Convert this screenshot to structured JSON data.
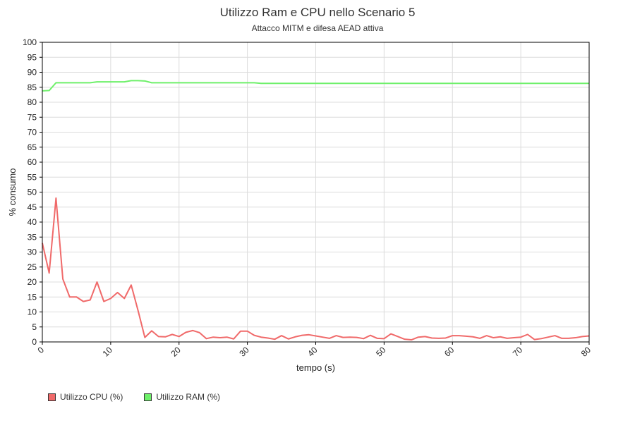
{
  "chart_data": {
    "type": "line",
    "title": "Utilizzo Ram e CPU nello Scenario 5",
    "subtitle": "Attacco MITM e difesa AEAD attiva",
    "xlabel": "tempo (s)",
    "ylabel": "% consumo",
    "xlim": [
      0,
      80
    ],
    "ylim": [
      0,
      100
    ],
    "x_ticks": [
      0,
      10,
      20,
      30,
      40,
      50,
      60,
      70,
      80
    ],
    "y_ticks": [
      0,
      5,
      10,
      15,
      20,
      25,
      30,
      35,
      40,
      45,
      50,
      55,
      60,
      65,
      70,
      75,
      80,
      85,
      90,
      95,
      100
    ],
    "grid": true,
    "legend_position": "bottom-left",
    "x": [
      0,
      1,
      2,
      3,
      4,
      5,
      6,
      7,
      8,
      9,
      10,
      11,
      12,
      13,
      14,
      15,
      16,
      17,
      18,
      19,
      20,
      21,
      22,
      23,
      24,
      25,
      26,
      27,
      28,
      29,
      30,
      31,
      32,
      33,
      34,
      35,
      36,
      37,
      38,
      39,
      40,
      41,
      42,
      43,
      44,
      45,
      46,
      47,
      48,
      49,
      50,
      51,
      52,
      53,
      54,
      55,
      56,
      57,
      58,
      59,
      60,
      61,
      62,
      63,
      64,
      65,
      66,
      67,
      68,
      69,
      70,
      71,
      72,
      73,
      74,
      75,
      76,
      77,
      78,
      79,
      80
    ],
    "series": [
      {
        "name": "Utilizzo CPU (%)",
        "color": "#f06a6a",
        "values": [
          33,
          23,
          48,
          21,
          15,
          15,
          13.5,
          14,
          20,
          13.5,
          14.5,
          16.5,
          14.5,
          19,
          10.5,
          1.5,
          3.7,
          1.8,
          1.7,
          2.5,
          1.8,
          3.2,
          3.8,
          3.1,
          1.1,
          1.6,
          1.4,
          1.6,
          1,
          3.6,
          3.6,
          2.2,
          1.6,
          1.3,
          0.9,
          2.1,
          1,
          1.7,
          2.2,
          2.4,
          2,
          1.6,
          1.2,
          2.1,
          1.5,
          1.6,
          1.5,
          1.1,
          2.2,
          1.2,
          1.1,
          2.7,
          1.8,
          0.9,
          0.7,
          1.6,
          1.8,
          1.3,
          1.2,
          1.3,
          2.1,
          2.1,
          1.9,
          1.7,
          1.2,
          2.1,
          1.4,
          1.7,
          1.2,
          1.4,
          1.6,
          2.5,
          0.8,
          1.1,
          1.6,
          2.1,
          1.2,
          1.2,
          1.4,
          1.8,
          2
        ]
      },
      {
        "name": "Utilizzo RAM (%)",
        "color": "#6ef06a",
        "values": [
          83.8,
          83.9,
          86.5,
          86.5,
          86.5,
          86.5,
          86.5,
          86.5,
          86.8,
          86.8,
          86.8,
          86.8,
          86.8,
          87.2,
          87.2,
          87.1,
          86.5,
          86.5,
          86.5,
          86.5,
          86.5,
          86.5,
          86.5,
          86.5,
          86.5,
          86.5,
          86.5,
          86.5,
          86.5,
          86.5,
          86.5,
          86.5,
          86.3,
          86.3,
          86.3,
          86.3,
          86.3,
          86.3,
          86.3,
          86.3,
          86.3,
          86.3,
          86.3,
          86.3,
          86.3,
          86.3,
          86.3,
          86.3,
          86.3,
          86.3,
          86.3,
          86.3,
          86.3,
          86.3,
          86.3,
          86.3,
          86.3,
          86.3,
          86.3,
          86.3,
          86.3,
          86.3,
          86.3,
          86.3,
          86.3,
          86.3,
          86.3,
          86.3,
          86.3,
          86.3,
          86.3,
          86.3,
          86.3,
          86.3,
          86.3,
          86.3,
          86.3,
          86.3,
          86.3,
          86.3,
          86.3
        ]
      }
    ]
  }
}
